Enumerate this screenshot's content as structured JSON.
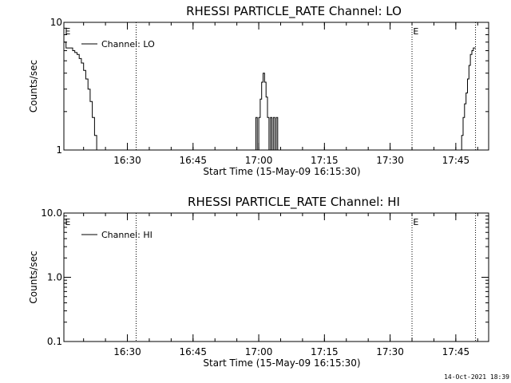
{
  "chart_data": [
    {
      "type": "line",
      "title": "RHESSI PARTICLE_RATE Channel: LO",
      "xlabel": "Start Time (15-May-09 16:15:30)",
      "ylabel": "Counts/sec",
      "yscale": "log",
      "ylim": [
        1,
        10
      ],
      "xlim": [
        "16:15:30",
        "17:52:30"
      ],
      "x_ticks": [
        "16:30",
        "16:45",
        "17:00",
        "17:15",
        "17:30",
        "17:45"
      ],
      "y_ticks": [
        "1",
        "10"
      ],
      "legend": {
        "position": "top-left",
        "entries": [
          "Channel: LO"
        ]
      },
      "event_lines": [
        "16:32:00",
        "17:35:00",
        "17:49:30"
      ],
      "event_markers": [
        {
          "x": "16:15:45",
          "label": "E"
        },
        {
          "x": "17:35:15",
          "label": "E"
        }
      ],
      "series": [
        {
          "name": "Channel: LO",
          "x": [
            "16:15:30",
            "16:16:00",
            "16:16:30",
            "16:17:00",
            "16:17:30",
            "16:18:00",
            "16:18:30",
            "16:19:00",
            "16:19:30",
            "16:20:00",
            "16:20:30",
            "16:21:00",
            "16:21:30",
            "16:22:00",
            "16:22:30",
            "16:23:00",
            "16:23:30",
            "16:59:00",
            "16:59:20",
            "16:59:40",
            "17:00:00",
            "17:00:20",
            "17:00:40",
            "17:01:00",
            "17:01:20",
            "17:01:40",
            "17:02:00",
            "17:02:20",
            "17:02:40",
            "17:03:00",
            "17:03:20",
            "17:03:40",
            "17:04:00",
            "17:04:20",
            "17:46:00",
            "17:46:20",
            "17:46:40",
            "17:47:00",
            "17:47:20",
            "17:47:40",
            "17:48:00",
            "17:48:20",
            "17:48:40",
            "17:49:00",
            "17:49:30"
          ],
          "y": [
            7.0,
            6.3,
            6.3,
            6.3,
            6.0,
            5.8,
            5.6,
            5.2,
            4.8,
            4.2,
            3.6,
            3.0,
            2.4,
            1.8,
            1.3,
            1.0,
            1.0,
            1.0,
            1.8,
            1.0,
            1.8,
            2.5,
            3.4,
            4.0,
            3.4,
            2.6,
            1.8,
            1.0,
            1.8,
            1.0,
            1.8,
            1.0,
            1.8,
            1.0,
            1.0,
            1.3,
            1.8,
            2.3,
            2.8,
            3.6,
            4.6,
            5.6,
            6.0,
            6.3,
            6.3
          ]
        }
      ]
    },
    {
      "type": "line",
      "title": "RHESSI PARTICLE_RATE Channel: HI",
      "xlabel": "Start Time (15-May-09 16:15:30)",
      "ylabel": "Counts/sec",
      "yscale": "log",
      "ylim": [
        0.1,
        10
      ],
      "xlim": [
        "16:15:30",
        "17:52:30"
      ],
      "x_ticks": [
        "16:30",
        "16:45",
        "17:00",
        "17:15",
        "17:30",
        "17:45"
      ],
      "y_ticks": [
        "0.1",
        "1.0",
        "10.0"
      ],
      "legend": {
        "position": "top-left",
        "entries": [
          "Channel: HI"
        ]
      },
      "event_lines": [
        "16:32:00",
        "17:35:00",
        "17:49:30"
      ],
      "event_markers": [
        {
          "x": "16:15:45",
          "label": "E"
        },
        {
          "x": "17:35:15",
          "label": "E"
        }
      ],
      "series": [
        {
          "name": "Channel: HI",
          "x": [],
          "y": []
        }
      ]
    }
  ],
  "footer": {
    "timestamp": "14-Oct-2021 18:39"
  }
}
